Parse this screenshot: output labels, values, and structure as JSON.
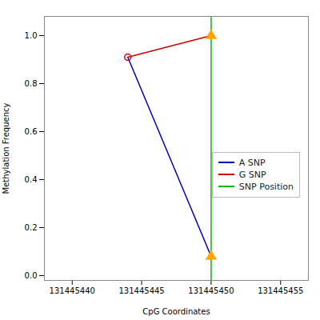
{
  "chart_data": {
    "type": "line",
    "xlabel": "CpG Coordinates",
    "ylabel": "Methylation Frequency",
    "x": [
      131445444,
      131445450
    ],
    "series": [
      {
        "name": "A SNP",
        "color": "#0000bb",
        "values": [
          0.91,
          0.08
        ]
      },
      {
        "name": "G SNP",
        "color": "#cc0000",
        "values": [
          0.91,
          1.0
        ]
      }
    ],
    "vlines": [
      {
        "name": "SNP Position",
        "x": 131445450,
        "color": "#00bb00"
      }
    ],
    "markers": [
      {
        "x": 131445450,
        "y": 0.08,
        "marker": "triangle",
        "color": "#FFA500"
      },
      {
        "x": 131445444,
        "y": 0.91,
        "marker": "circle-open",
        "color": "#cc0000"
      },
      {
        "x": 131445450,
        "y": 1.0,
        "marker": "triangle",
        "color": "#FFA500"
      }
    ],
    "xlim": [
      131445438,
      131445457
    ],
    "ylim": [
      -0.02,
      1.08
    ],
    "xticks": [
      131445440,
      131445445,
      131445450,
      131445455
    ],
    "yticks": [
      {
        "value": 0,
        "label": "0.0"
      },
      0.2,
      0.4,
      0.6,
      0.8,
      {
        "value": 1,
        "label": "1.0"
      }
    ],
    "grid": false,
    "legend": "right"
  }
}
